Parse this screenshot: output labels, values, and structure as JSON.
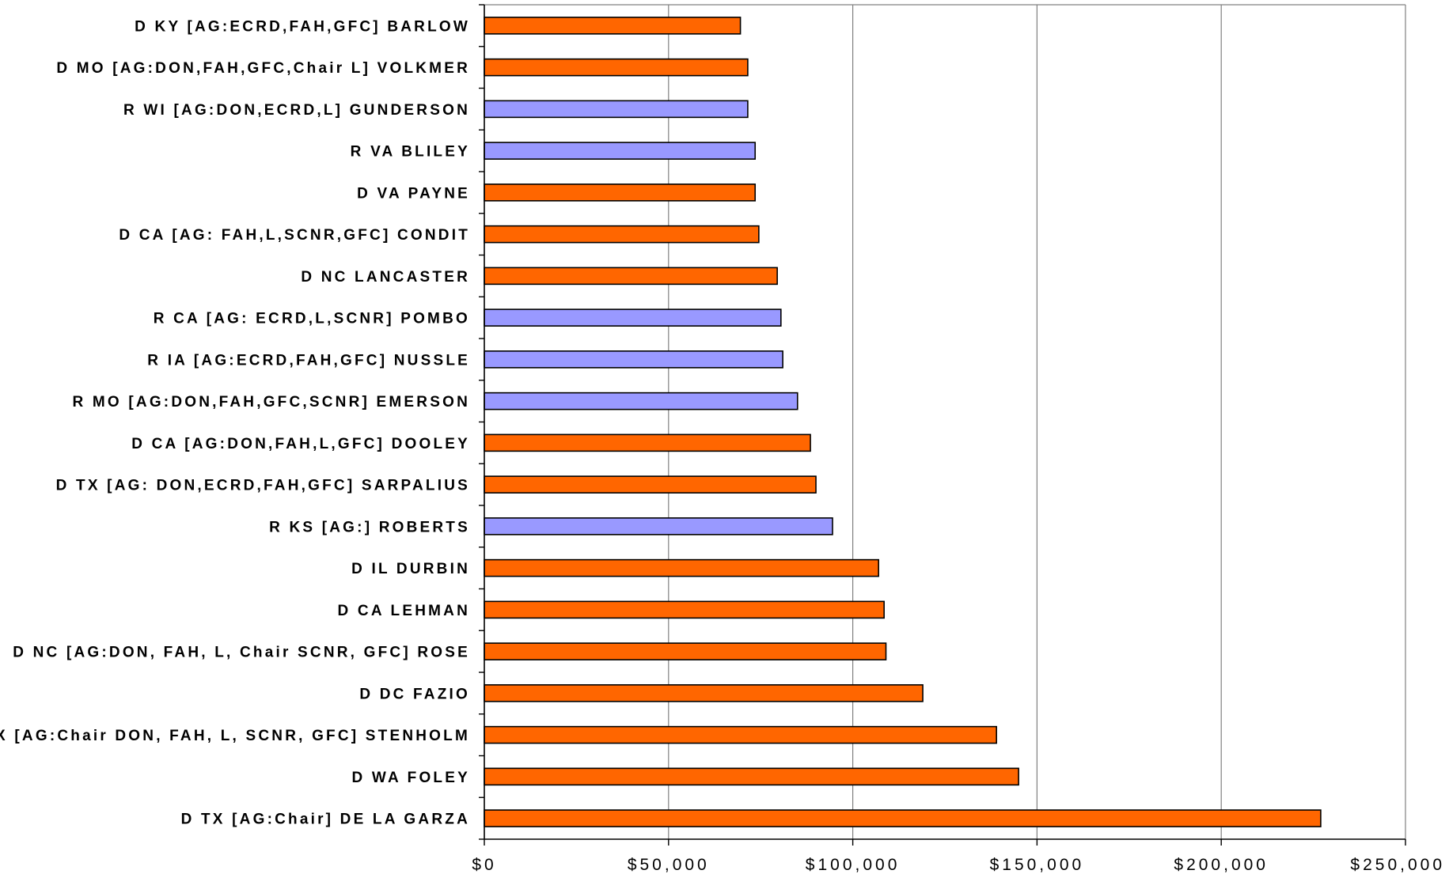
{
  "chart_data": {
    "type": "bar",
    "orientation": "horizontal",
    "categories": [
      "D KY [AG:ECRD,FAH,GFC] BARLOW",
      "D MO [AG:DON,FAH,GFC,Chair L] VOLKMER",
      "R WI [AG:DON,ECRD,L] GUNDERSON",
      "R VA  BLILEY",
      "D VA  PAYNE",
      "D CA [AG: FAH,L,SCNR,GFC] CONDIT",
      "D NC  LANCASTER",
      "R CA [AG: ECRD,L,SCNR] POMBO",
      "R IA [AG:ECRD,FAH,GFC] NUSSLE",
      "R MO [AG:DON,FAH,GFC,SCNR] EMERSON",
      "D CA [AG:DON,FAH,L,GFC] DOOLEY",
      "D TX [AG: DON,ECRD,FAH,GFC] SARPALIUS",
      "R KS [AG:] ROBERTS",
      "D IL  DURBIN",
      "D CA  LEHMAN",
      "D NC [AG:DON, FAH, L, Chair SCNR, GFC] ROSE",
      "D DC  FAZIO",
      "D TX [AG:Chair DON, FAH, L, SCNR, GFC] STENHOLM",
      "D WA  FOLEY",
      "D TX [AG:Chair] DE LA GARZA"
    ],
    "values": [
      69500,
      71500,
      71500,
      73500,
      73500,
      74500,
      79500,
      80500,
      81000,
      85000,
      88500,
      90000,
      94500,
      107000,
      108500,
      109000,
      119000,
      139000,
      145000,
      227000
    ],
    "party": [
      "D",
      "D",
      "R",
      "R",
      "D",
      "D",
      "D",
      "R",
      "R",
      "R",
      "D",
      "D",
      "R",
      "D",
      "D",
      "D",
      "D",
      "D",
      "D",
      "D"
    ],
    "party_colors": {
      "D": "#ff6600",
      "R": "#9999ff"
    },
    "xlim": [
      0,
      250000
    ],
    "xticks": [
      0,
      50000,
      100000,
      150000,
      200000,
      250000
    ],
    "xtick_labels": [
      "$0",
      "$50,000",
      "$100,000",
      "$150,000",
      "$200,000",
      "$250,000"
    ],
    "title": "",
    "xlabel": "",
    "ylabel": "",
    "grid": "vertical",
    "legend": "none"
  }
}
